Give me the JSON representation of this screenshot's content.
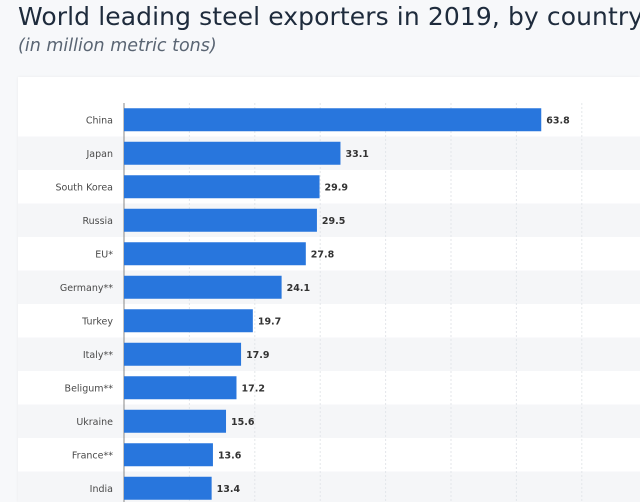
{
  "header": {
    "title": "World leading steel exporters in 2019, by country",
    "subtitle": "(in million metric tons)"
  },
  "colors": {
    "bar": "#2876dd",
    "stripe": "#f5f6f8",
    "grid": "#e3e6ea",
    "axis": "#888888"
  },
  "chart_data": {
    "type": "bar",
    "orientation": "horizontal",
    "title": "World leading steel exporters in 2019, by country",
    "subtitle": "(in million metric tons)",
    "categories": [
      "China",
      "Japan",
      "South Korea",
      "Russia",
      "EU*",
      "Germany**",
      "Turkey",
      "Italy**",
      "Beligum**",
      "Ukraine",
      "France**",
      "India"
    ],
    "values": [
      63.8,
      33.1,
      29.9,
      29.5,
      27.8,
      24.1,
      19.7,
      17.9,
      17.2,
      15.6,
      13.6,
      13.4
    ],
    "value_labels": [
      "63.8",
      "33.1",
      "29.9",
      "29.5",
      "27.8",
      "24.1",
      "19.7",
      "17.9",
      "17.2",
      "15.6",
      "13.6",
      "13.4"
    ],
    "xlim": [
      0,
      80
    ],
    "grid": true,
    "xlabel": "",
    "ylabel": ""
  }
}
